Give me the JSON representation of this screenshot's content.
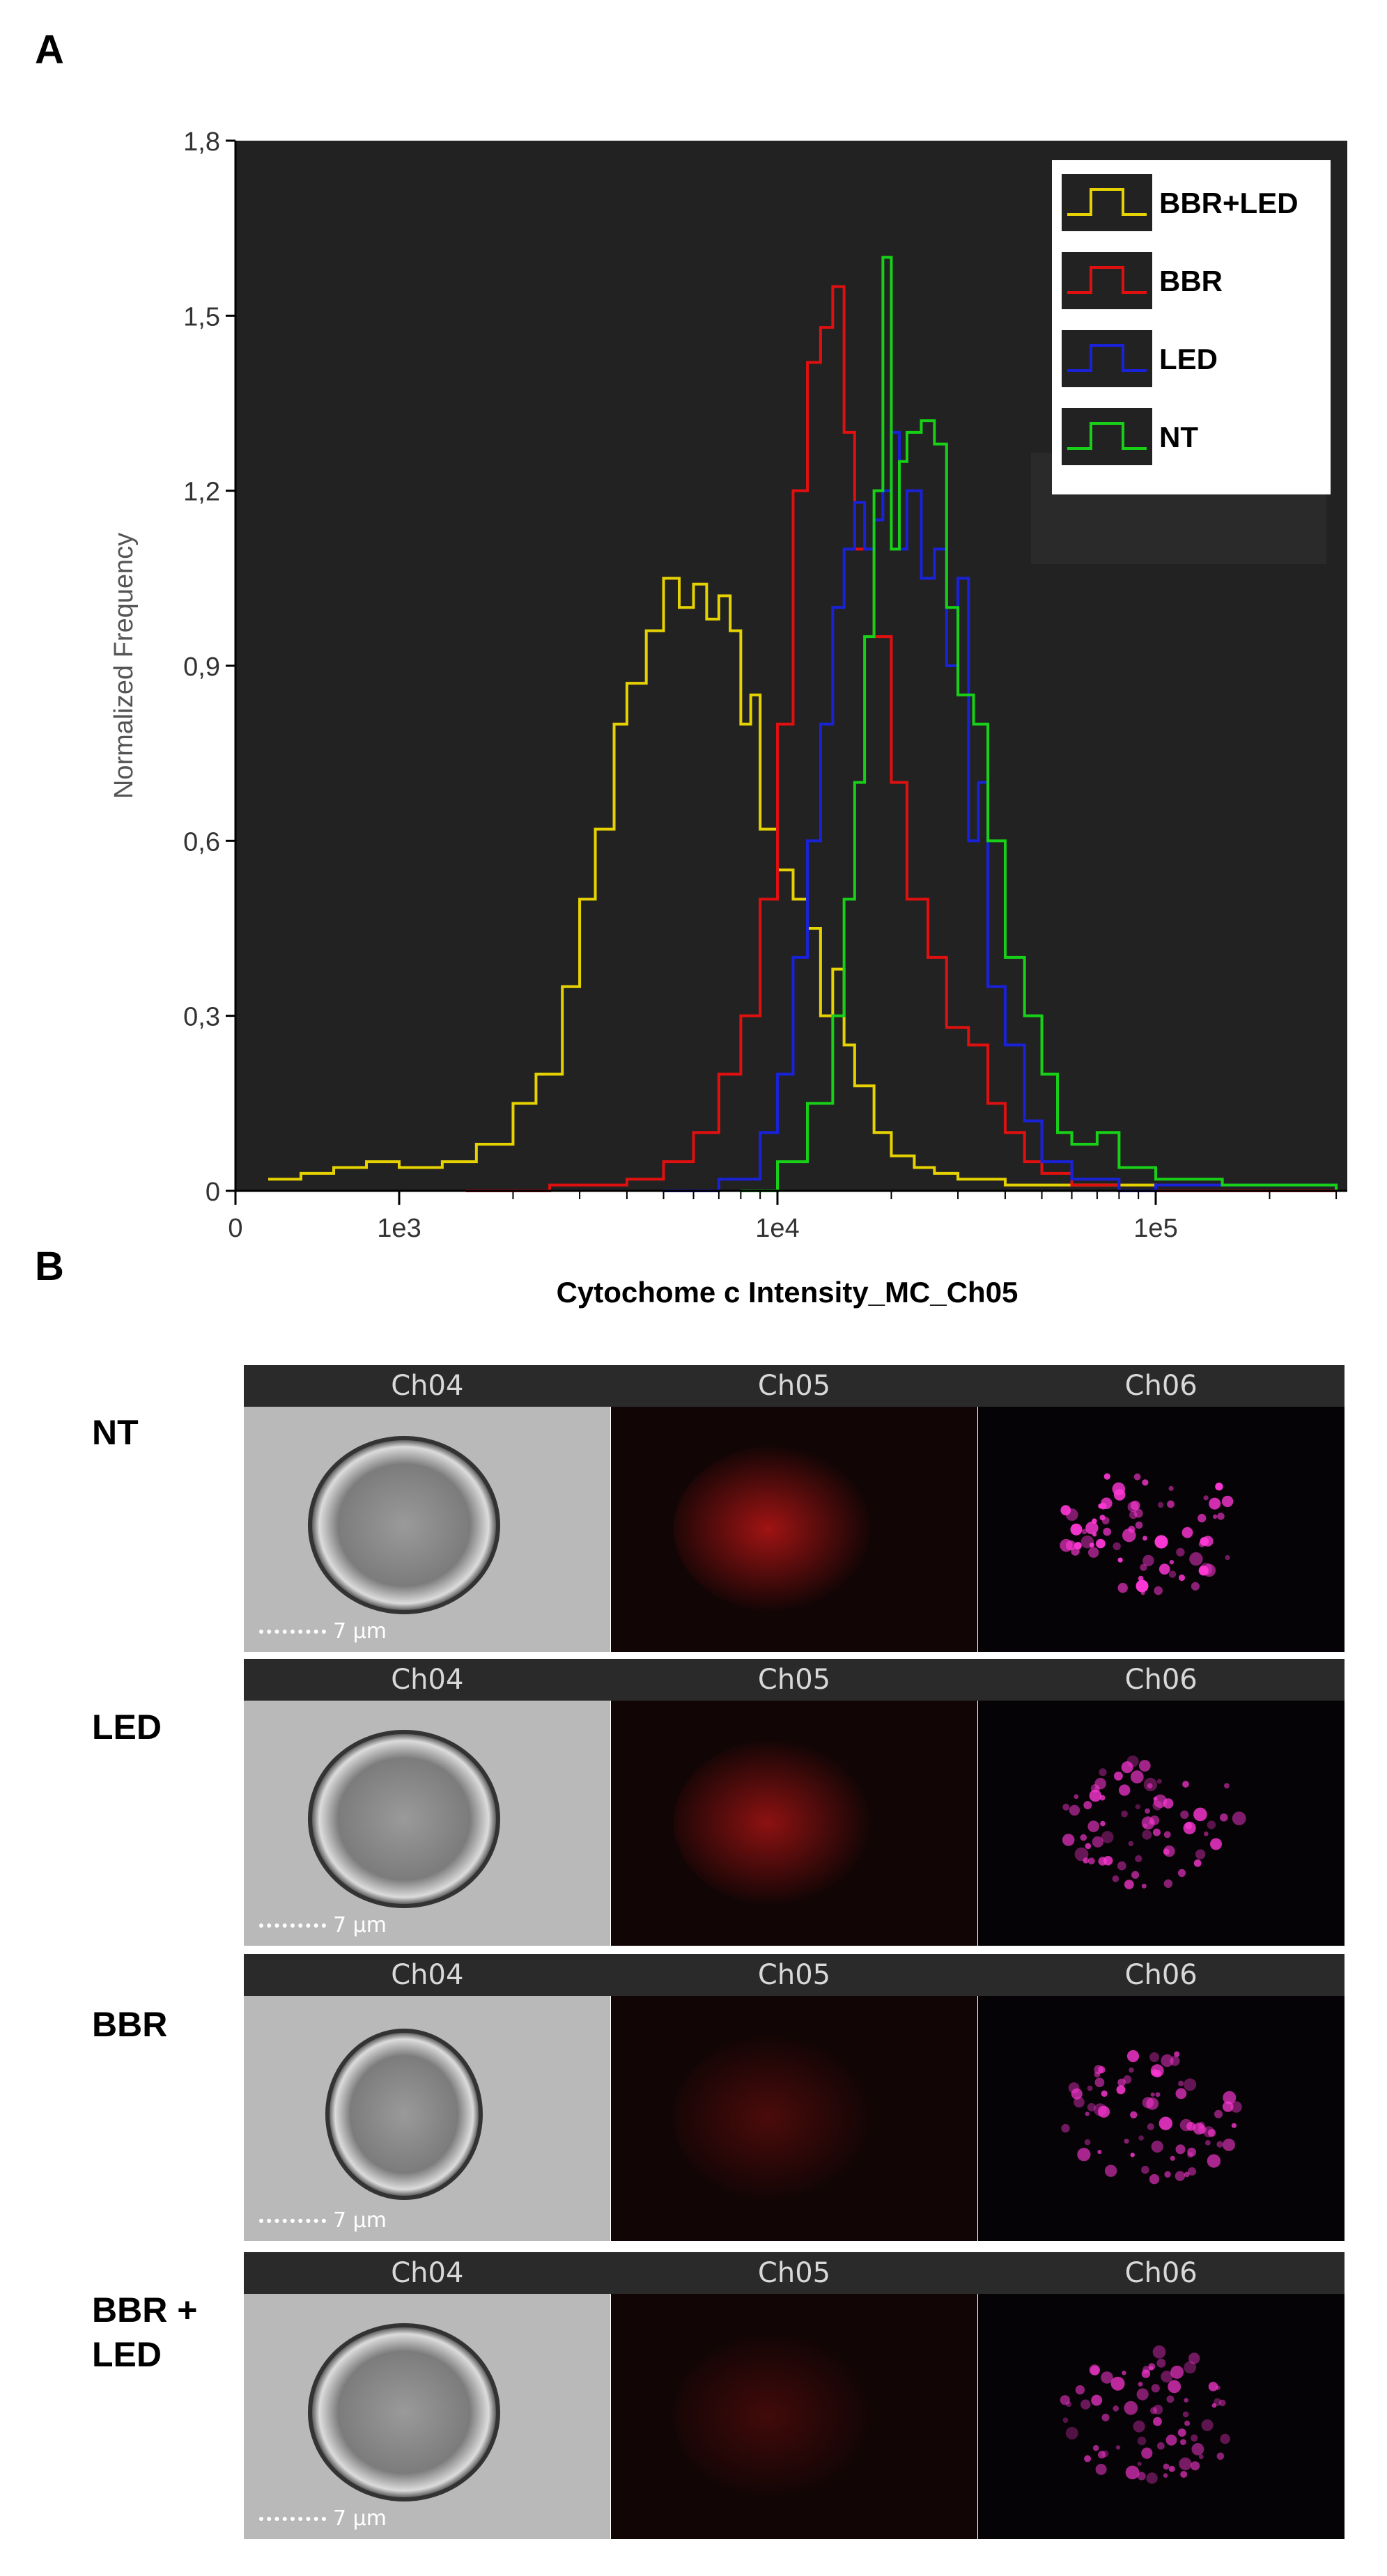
{
  "panel_a": {
    "letter": "A"
  },
  "panel_b": {
    "letter": "B"
  },
  "colors": {
    "plot_background": "#222222",
    "BBR+LED": "#e6d200",
    "BBR": "#e01010",
    "LED": "#1a22d8",
    "NT": "#17d017",
    "ch05": "#d01818",
    "ch06": "#ff38d6"
  },
  "chart_data": {
    "type": "line",
    "title": "",
    "xlabel": "Cytochome c Intensity_MC_Ch05",
    "ylabel": "Normalized Frequency",
    "x_scale": "log",
    "ylim": [
      0,
      1.8
    ],
    "y_ticks": [
      "0",
      "0,3",
      "0,6",
      "0,9",
      "1,2",
      "1,5",
      "1,8"
    ],
    "y_tick_values": [
      0,
      0.3,
      0.6,
      0.9,
      1.2,
      1.5,
      1.8
    ],
    "x_ticks": [
      "0",
      "1e3",
      "1e4",
      "1e5"
    ],
    "x_tick_values": [
      0,
      1000,
      10000,
      100000
    ],
    "legend_position": "top-right",
    "legend": [
      "BBR+LED",
      "BBR",
      "LED",
      "NT"
    ],
    "series": [
      {
        "name": "BBR+LED",
        "x": [
          200,
          400,
          600,
          800,
          1000,
          1300,
          1600,
          2000,
          2300,
          2700,
          3000,
          3300,
          3700,
          4000,
          4500,
          5000,
          5500,
          6000,
          6500,
          7000,
          7500,
          8000,
          8500,
          9000,
          10000,
          11000,
          12000,
          13000,
          14000,
          15000,
          16000,
          18000,
          20000,
          23000,
          26000,
          30000,
          35000,
          40000,
          60000,
          100000,
          300000
        ],
        "y": [
          0.02,
          0.03,
          0.04,
          0.05,
          0.04,
          0.05,
          0.08,
          0.15,
          0.2,
          0.35,
          0.5,
          0.62,
          0.8,
          0.87,
          0.96,
          1.05,
          1.0,
          1.04,
          0.98,
          1.02,
          0.96,
          0.8,
          0.85,
          0.62,
          0.55,
          0.5,
          0.45,
          0.3,
          0.38,
          0.25,
          0.18,
          0.1,
          0.06,
          0.04,
          0.03,
          0.02,
          0.02,
          0.01,
          0.01,
          0.0,
          0.0
        ]
      },
      {
        "name": "BBR",
        "x": [
          1500,
          2500,
          4000,
          5000,
          6000,
          7000,
          8000,
          9000,
          10000,
          11000,
          12000,
          13000,
          14000,
          15000,
          16000,
          18000,
          20000,
          22000,
          25000,
          28000,
          32000,
          36000,
          40000,
          45000,
          50000,
          60000,
          80000,
          300000
        ],
        "y": [
          0.0,
          0.01,
          0.02,
          0.05,
          0.1,
          0.2,
          0.3,
          0.5,
          0.8,
          1.2,
          1.42,
          1.48,
          1.55,
          1.3,
          1.1,
          0.95,
          0.7,
          0.5,
          0.4,
          0.28,
          0.25,
          0.15,
          0.1,
          0.05,
          0.03,
          0.01,
          0.0,
          0.0
        ]
      },
      {
        "name": "LED",
        "x": [
          5000,
          7000,
          9000,
          10000,
          11000,
          12000,
          13000,
          14000,
          15000,
          16000,
          17000,
          18000,
          19000,
          20000,
          21000,
          22000,
          24000,
          26000,
          28000,
          30000,
          32000,
          34000,
          36000,
          40000,
          45000,
          50000,
          60000,
          80000,
          100000,
          300000
        ],
        "y": [
          0.0,
          0.02,
          0.1,
          0.2,
          0.4,
          0.6,
          0.8,
          1.0,
          1.1,
          1.18,
          1.1,
          1.15,
          1.2,
          1.3,
          1.1,
          1.2,
          1.05,
          1.1,
          0.9,
          1.05,
          0.6,
          0.7,
          0.35,
          0.25,
          0.12,
          0.05,
          0.02,
          0.0,
          0.01,
          0.0
        ]
      },
      {
        "name": "NT",
        "x": [
          8000,
          10000,
          12000,
          14000,
          15000,
          16000,
          17000,
          18000,
          19000,
          20000,
          21000,
          22000,
          24000,
          26000,
          28000,
          30000,
          33000,
          36000,
          40000,
          45000,
          50000,
          55000,
          60000,
          70000,
          80000,
          100000,
          150000,
          300000
        ],
        "y": [
          0.0,
          0.05,
          0.15,
          0.3,
          0.5,
          0.7,
          0.95,
          1.2,
          1.6,
          1.1,
          1.25,
          1.3,
          1.32,
          1.28,
          1.0,
          0.85,
          0.8,
          0.6,
          0.4,
          0.3,
          0.2,
          0.1,
          0.08,
          0.1,
          0.04,
          0.02,
          0.01,
          0.0
        ]
      }
    ]
  },
  "strips": [
    {
      "label": "NT",
      "channels": [
        "Ch04",
        "Ch05",
        "Ch06"
      ],
      "scale": "7 µm",
      "red_intensity": 0.75,
      "magenta_intensity": 1.0
    },
    {
      "label": "LED",
      "channels": [
        "Ch04",
        "Ch05",
        "Ch06"
      ],
      "scale": "7 µm",
      "red_intensity": 0.65,
      "magenta_intensity": 0.8
    },
    {
      "label": "BBR",
      "channels": [
        "Ch04",
        "Ch05",
        "Ch06"
      ],
      "scale": "7 µm",
      "red_intensity": 0.3,
      "magenta_intensity": 0.85
    },
    {
      "label_line1": "BBR +",
      "label_line2": "LED",
      "channels": [
        "Ch04",
        "Ch05",
        "Ch06"
      ],
      "scale": "7 µm",
      "red_intensity": 0.25,
      "magenta_intensity": 0.75
    }
  ]
}
